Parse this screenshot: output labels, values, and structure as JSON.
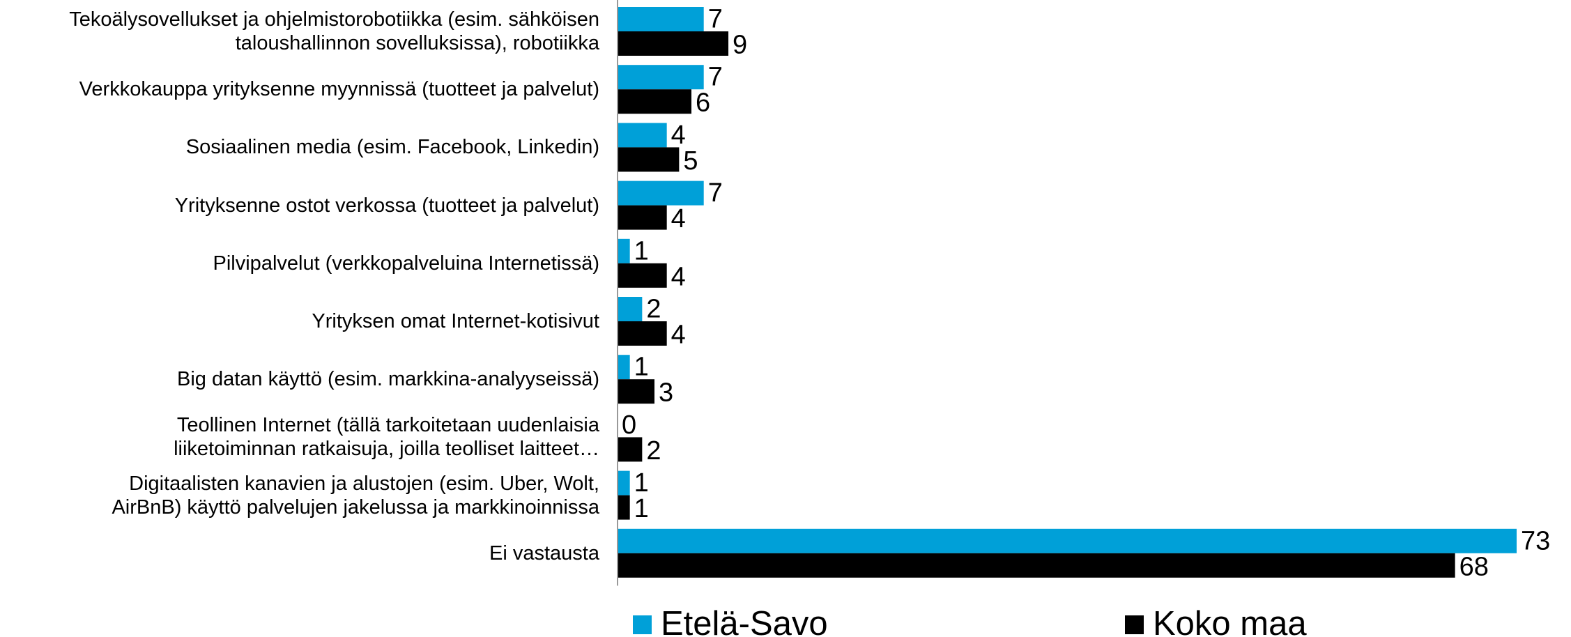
{
  "chart_data": {
    "type": "hbar",
    "categories": [
      "Tekoälysovellukset ja ohjelmistorobotiikka (esim. sähköisen\ntaloushallinnon sovelluksissa), robotiikka",
      "Verkkokauppa yrityksenne myynnissä (tuotteet ja palvelut)",
      "Sosiaalinen media (esim. Facebook, Linkedin)",
      "Yrityksenne ostot verkossa (tuotteet ja palvelut)",
      "Pilvipalvelut  (verkkopalveluina Internetissä)",
      "Yrityksen omat Internet-kotisivut",
      "Big datan käyttö (esim. markkina-analyyseissä)",
      "Teollinen Internet (tällä tarkoitetaan uudenlaisia\nliiketoiminnan ratkaisuja, joilla teolliset laitteet…",
      "Digitaalisten kanavien ja alustojen (esim. Uber, Wolt,\nAirBnB) käyttö palvelujen jakelussa ja markkinoinnissa",
      "Ei vastausta"
    ],
    "series": [
      {
        "name": "Etelä-Savo",
        "color": "#00a0d8",
        "values": [
          7,
          7,
          4,
          7,
          1,
          2,
          1,
          0,
          1,
          73
        ]
      },
      {
        "name": "Koko maa",
        "color": "#000000",
        "values": [
          9,
          6,
          5,
          4,
          4,
          4,
          3,
          2,
          1,
          68
        ]
      }
    ],
    "xlim": [
      0,
      73
    ],
    "legend": "bottom"
  }
}
